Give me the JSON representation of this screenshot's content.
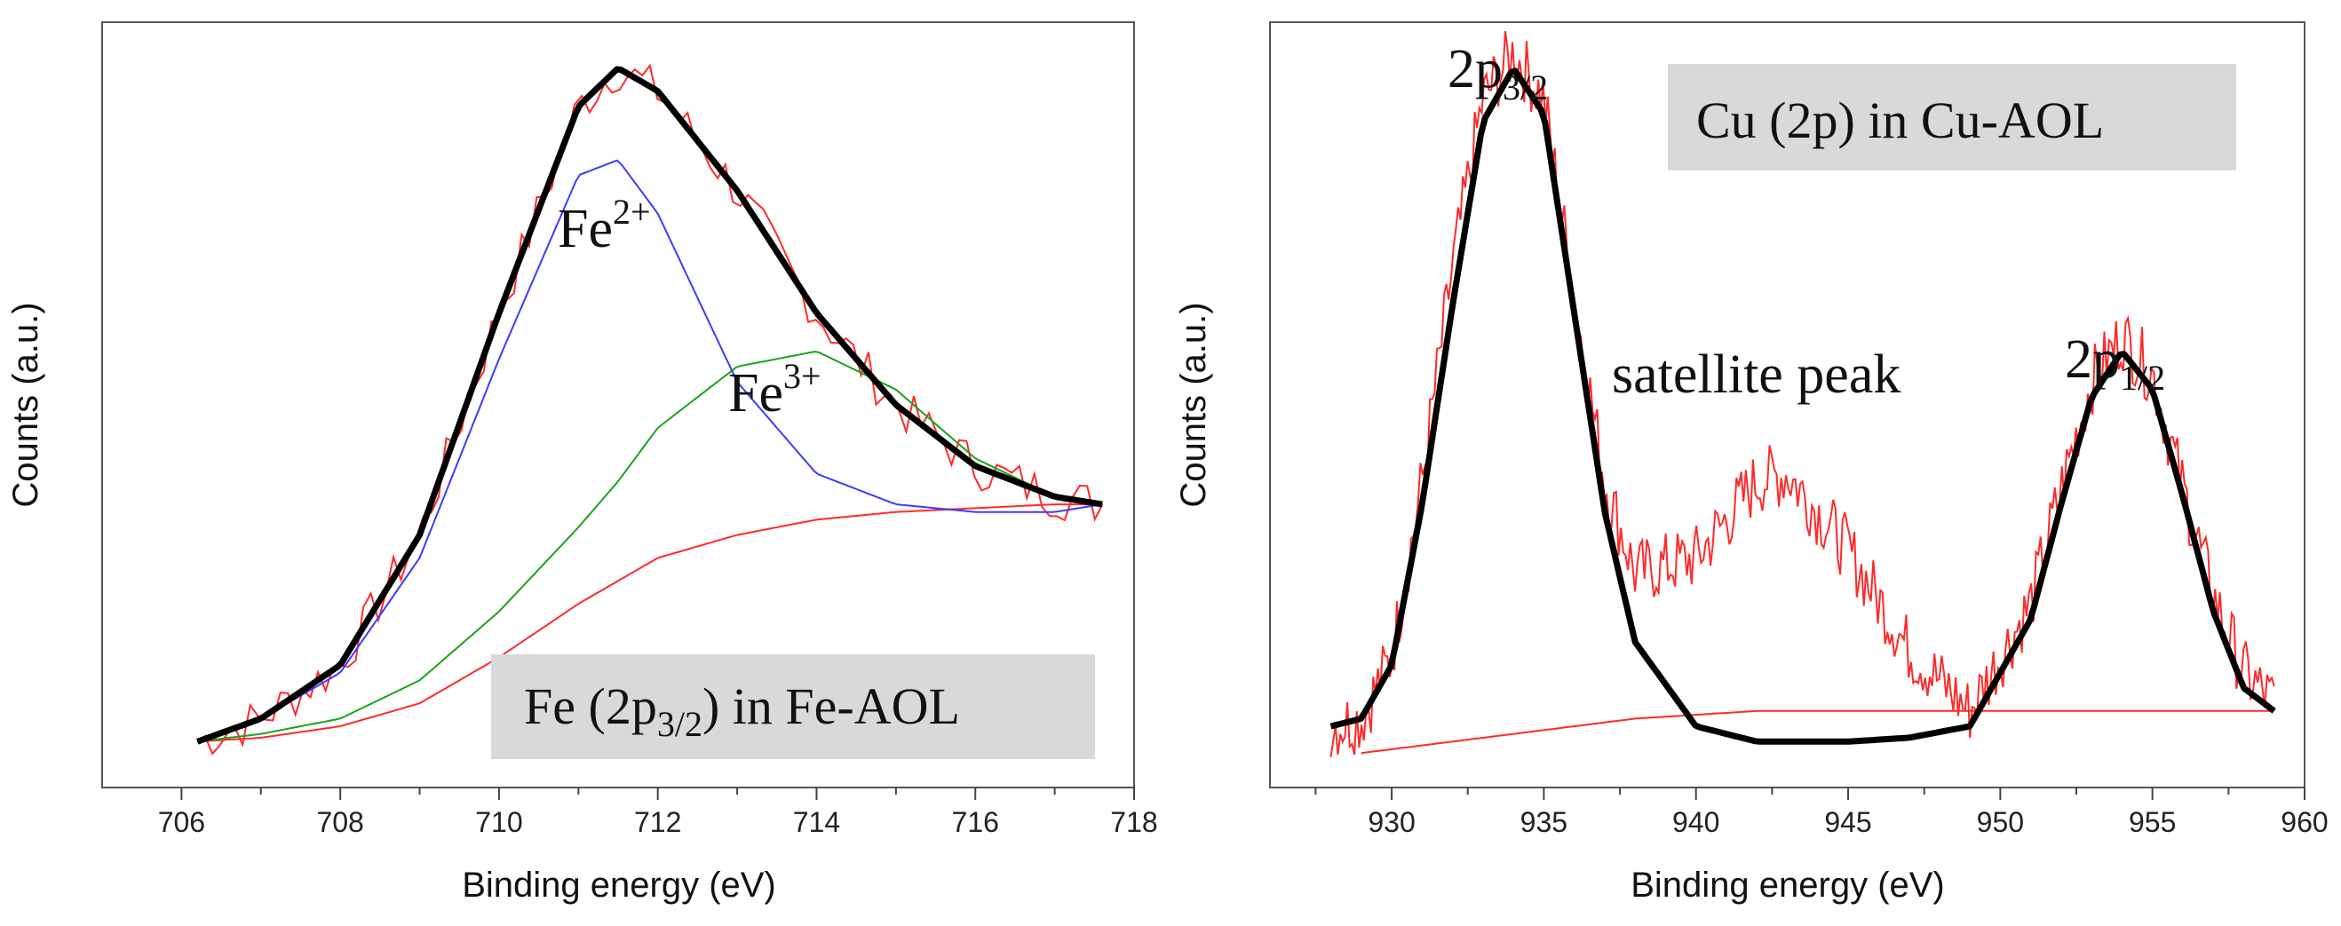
{
  "chart_data": [
    {
      "type": "line",
      "title": "Fe (2p3/2) in Fe-AOL",
      "title_box": {
        "prefix": "Fe (2p",
        "sub": "3/2",
        "suffix": ")  in Fe-AOL"
      },
      "xlabel": "Binding energy (eV)",
      "ylabel": "Counts (a.u.)",
      "xlim": [
        705,
        718
      ],
      "ylim": [
        0,
        1.0
      ],
      "xticks": [
        "706",
        "708",
        "710",
        "712",
        "714",
        "716",
        "718"
      ],
      "peaks": [
        {
          "name": "Fe2+",
          "label_base": "Fe",
          "label_sup": "2+",
          "center": 711.3,
          "color": "#3b3bff"
        },
        {
          "name": "Fe3+",
          "label_base": "Fe",
          "label_sup": "3+",
          "center": 714.0,
          "color": "#1aa31a"
        }
      ],
      "series": [
        {
          "name": "experimental",
          "color": "#ff2a2a"
        },
        {
          "name": "envelope fit",
          "color": "#000000"
        },
        {
          "name": "Fe2+ component",
          "color": "#3b3bff"
        },
        {
          "name": "Fe3+ component",
          "color": "#1aa31a"
        },
        {
          "name": "background",
          "color": "#ff2a2a"
        }
      ],
      "x": [
        706.2,
        707,
        708,
        709,
        710,
        711,
        711.5,
        712,
        713,
        714,
        715,
        716,
        717,
        717.6
      ],
      "envelope": [
        0.06,
        0.09,
        0.16,
        0.33,
        0.62,
        0.89,
        0.94,
        0.91,
        0.78,
        0.62,
        0.5,
        0.42,
        0.38,
        0.37
      ],
      "fe2_component": [
        0.06,
        0.09,
        0.15,
        0.3,
        0.56,
        0.8,
        0.82,
        0.75,
        0.53,
        0.41,
        0.37,
        0.36,
        0.36,
        0.37
      ],
      "fe3_component": [
        0.06,
        0.07,
        0.09,
        0.14,
        0.23,
        0.34,
        0.4,
        0.47,
        0.55,
        0.57,
        0.52,
        0.43,
        0.38,
        0.37
      ],
      "background": [
        0.06,
        0.065,
        0.08,
        0.11,
        0.17,
        0.24,
        0.27,
        0.3,
        0.33,
        0.35,
        0.36,
        0.365,
        0.37,
        0.37
      ]
    },
    {
      "type": "line",
      "title": "Cu (2p)  in Cu-AOL",
      "xlabel": "Binding energy (eV)",
      "ylabel": "Counts (a.u.)",
      "xlim": [
        926,
        960
      ],
      "ylim": [
        0,
        1.0
      ],
      "xticks": [
        "930",
        "935",
        "940",
        "945",
        "950",
        "955",
        "960"
      ],
      "peaks": [
        {
          "name": "2p3/2",
          "label_base": "2p",
          "label_sub": "3/2",
          "center": 934.0
        },
        {
          "name": "satellite peak",
          "label": "satellite peak",
          "center": 943.0
        },
        {
          "name": "2p1/2",
          "label_base": "2p",
          "label_sub": "1/2",
          "center": 954.0
        }
      ],
      "series": [
        {
          "name": "experimental",
          "color": "#ff2a2a"
        },
        {
          "name": "fit",
          "color": "#000000"
        },
        {
          "name": "background",
          "color": "#ff2a2a"
        }
      ],
      "x": [
        928,
        929,
        930,
        931,
        932,
        933,
        934,
        935,
        936,
        937,
        938,
        940,
        942,
        943,
        945,
        947,
        949,
        951,
        952,
        953,
        954,
        955,
        956,
        957,
        958,
        959
      ],
      "fit": [
        0.08,
        0.09,
        0.16,
        0.37,
        0.63,
        0.87,
        0.94,
        0.88,
        0.62,
        0.36,
        0.19,
        0.08,
        0.06,
        0.06,
        0.06,
        0.065,
        0.08,
        0.22,
        0.37,
        0.51,
        0.57,
        0.52,
        0.38,
        0.23,
        0.13,
        0.1
      ],
      "experimental_envelope": [
        0.08,
        0.09,
        0.17,
        0.4,
        0.68,
        0.9,
        0.96,
        0.9,
        0.64,
        0.4,
        0.28,
        0.3,
        0.4,
        0.41,
        0.31,
        0.18,
        0.1,
        0.24,
        0.39,
        0.53,
        0.59,
        0.54,
        0.39,
        0.25,
        0.15,
        0.11
      ],
      "background": [
        0.04,
        0.045,
        0.05,
        0.055,
        0.06,
        0.065,
        0.07,
        0.075,
        0.08,
        0.085,
        0.09,
        0.095,
        0.1,
        0.1,
        0.1,
        0.1,
        0.1,
        0.1,
        0.1,
        0.1,
        0.1,
        0.1,
        0.1,
        0.1,
        0.1,
        0.1
      ]
    }
  ]
}
